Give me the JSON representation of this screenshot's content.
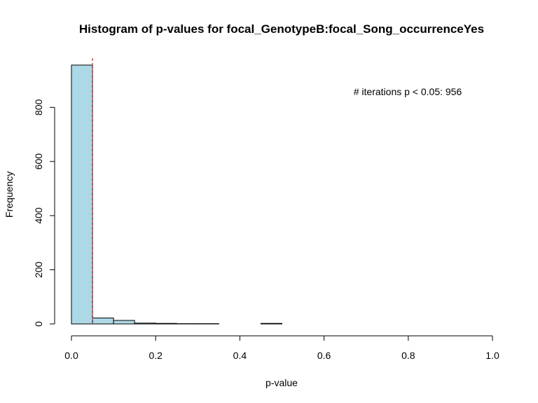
{
  "chart_data": {
    "type": "bar",
    "title": "Histogram of p-values for focal_GenotypeB:focal_Song_occurrenceYes",
    "xlabel": "p-value",
    "ylabel": "Frequency",
    "xlim": [
      0,
      1
    ],
    "ylim": [
      0,
      960
    ],
    "x_ticks": [
      "0.0",
      "0.2",
      "0.4",
      "0.6",
      "0.8",
      "1.0"
    ],
    "y_ticks": [
      "0",
      "200",
      "400",
      "600",
      "800"
    ],
    "bin_width": 0.05,
    "bins": [
      {
        "x0": 0.0,
        "x1": 0.05,
        "count": 956
      },
      {
        "x0": 0.05,
        "x1": 0.1,
        "count": 22
      },
      {
        "x0": 0.1,
        "x1": 0.15,
        "count": 13
      },
      {
        "x0": 0.15,
        "x1": 0.2,
        "count": 3
      },
      {
        "x0": 0.2,
        "x1": 0.25,
        "count": 2
      },
      {
        "x0": 0.25,
        "x1": 0.3,
        "count": 1
      },
      {
        "x0": 0.3,
        "x1": 0.35,
        "count": 1
      },
      {
        "x0": 0.35,
        "x1": 0.4,
        "count": 0
      },
      {
        "x0": 0.4,
        "x1": 0.45,
        "count": 0
      },
      {
        "x0": 0.45,
        "x1": 0.5,
        "count": 2
      },
      {
        "x0": 0.5,
        "x1": 0.55,
        "count": 0
      },
      {
        "x0": 0.55,
        "x1": 0.6,
        "count": 0
      },
      {
        "x0": 0.6,
        "x1": 0.65,
        "count": 0
      },
      {
        "x0": 0.65,
        "x1": 0.7,
        "count": 0
      },
      {
        "x0": 0.7,
        "x1": 0.75,
        "count": 0
      },
      {
        "x0": 0.75,
        "x1": 0.8,
        "count": 0
      },
      {
        "x0": 0.8,
        "x1": 0.85,
        "count": 0
      },
      {
        "x0": 0.85,
        "x1": 0.9,
        "count": 0
      },
      {
        "x0": 0.9,
        "x1": 0.95,
        "count": 0
      },
      {
        "x0": 0.95,
        "x1": 1.0,
        "count": 0
      }
    ],
    "threshold_line": {
      "x": 0.05,
      "color": "#e0202a",
      "style": "dashed"
    },
    "annotation": "# iterations p < 0.05: 956",
    "bar_color": "#add8e6",
    "bar_border_color": "#000000",
    "grid": false
  }
}
